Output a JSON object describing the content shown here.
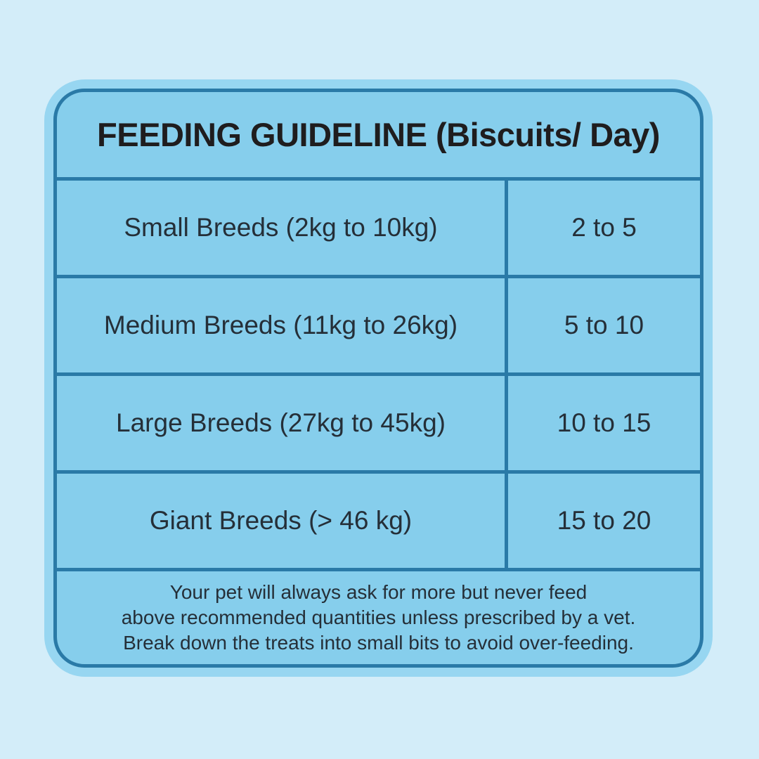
{
  "title": "FEEDING GUIDELINE (Biscuits/ Day)",
  "table": {
    "rows": [
      {
        "breed": "Small Breeds (2kg to 10kg)",
        "quantity": "2 to 5"
      },
      {
        "breed": "Medium Breeds (11kg to 26kg)",
        "quantity": "5 to 10"
      },
      {
        "breed": "Large Breeds (27kg to 45kg)",
        "quantity": "10 to 15"
      },
      {
        "breed": "Giant Breeds (> 46 kg)",
        "quantity": "15 to 20"
      }
    ]
  },
  "footer": {
    "lines": [
      "Your pet will always ask for more but never feed",
      "above recommended quantities unless prescribed by a vet.",
      "Break down the treats into small bits to avoid over-feeding."
    ]
  },
  "colors": {
    "page_background": "#d3edf9",
    "card_fill": "#86ceec",
    "card_outer_ring": "#97d6f1",
    "border_and_dividers": "#2a7aa7",
    "title_text": "#1f1d1e",
    "body_text": "#252f38"
  },
  "chart_data": {
    "type": "table",
    "title": "FEEDING GUIDELINE (Biscuits/ Day)",
    "rows": [
      [
        "Small Breeds (2kg to 10kg)",
        "2 to 5"
      ],
      [
        "Medium Breeds (11kg to 26kg)",
        "5 to 10"
      ],
      [
        "Large Breeds (27kg to 45kg)",
        "10 to 15"
      ],
      [
        "Giant Breeds (> 46 kg)",
        "15 to 20"
      ]
    ],
    "note": "Your pet will always ask for more but never feed above recommended quantities unless prescribed by a vet. Break down the treats into small bits to avoid over-feeding.",
    "layout": "two-column table, title row on top, note row at bottom, grid lines on"
  }
}
